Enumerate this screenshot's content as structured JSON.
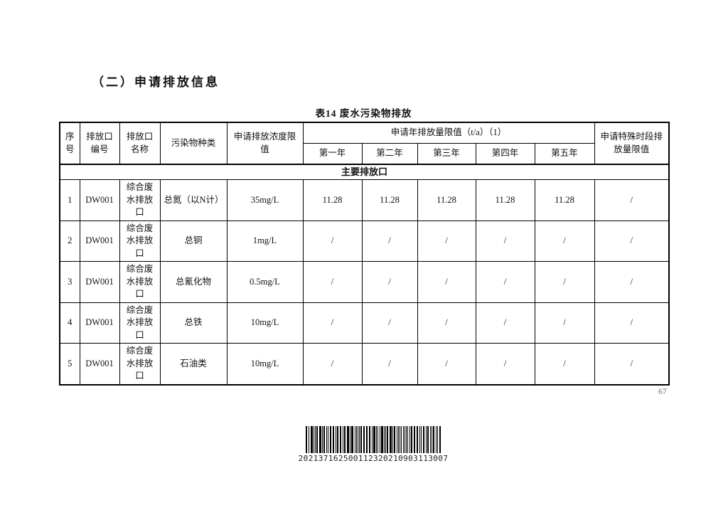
{
  "page": {
    "heading": "（二）申请排放信息",
    "page_number": "67"
  },
  "table": {
    "title": "表14 废水污染物排放",
    "headers": [
      "序号",
      "排放口编号",
      "排放口名称",
      "污染物种类",
      "申请排放浓度限值"
    ],
    "annual_header": "申请年排放量限值（t/a）（1）",
    "year_columns": [
      "第一年",
      "第二年",
      "第三年",
      "第四年",
      "第五年"
    ],
    "special_header": "申请特殊时段排放量限值",
    "group_label": "主要排放口",
    "rows": [
      {
        "seq": "1",
        "outlet_code": "DW001",
        "outlet_name": "综合废水排放口",
        "pollutant": "总氮（以N计）",
        "conc_limit": "35mg/L",
        "year1": "11.28",
        "year2": "11.28",
        "year3": "11.28",
        "year4": "11.28",
        "year5": "11.28",
        "special": "/"
      },
      {
        "seq": "2",
        "outlet_code": "DW001",
        "outlet_name": "综合废水排放口",
        "pollutant": "总铜",
        "conc_limit": "1mg/L",
        "year1": "/",
        "year2": "/",
        "year3": "/",
        "year4": "/",
        "year5": "/",
        "special": "/"
      },
      {
        "seq": "3",
        "outlet_code": "DW001",
        "outlet_name": "综合废水排放口",
        "pollutant": "总氰化物",
        "conc_limit": "0.5mg/L",
        "year1": "/",
        "year2": "/",
        "year3": "/",
        "year4": "/",
        "year5": "/",
        "special": "/"
      },
      {
        "seq": "4",
        "outlet_code": "DW001",
        "outlet_name": "综合废水排放口",
        "pollutant": "总铁",
        "conc_limit": "10mg/L",
        "year1": "/",
        "year2": "/",
        "year3": "/",
        "year4": "/",
        "year5": "/",
        "special": "/"
      },
      {
        "seq": "5",
        "outlet_code": "DW001",
        "outlet_name": "综合废水排放口",
        "pollutant": "石油类",
        "conc_limit": "10mg/L",
        "year1": "/",
        "year2": "/",
        "year3": "/",
        "year4": "/",
        "year5": "/",
        "special": "/"
      }
    ]
  },
  "barcode": {
    "value": "202137162500112320210903113007"
  },
  "colors": {
    "ink": "#111111",
    "page_number_gray": "#6f6f6f",
    "background": "#ffffff"
  }
}
